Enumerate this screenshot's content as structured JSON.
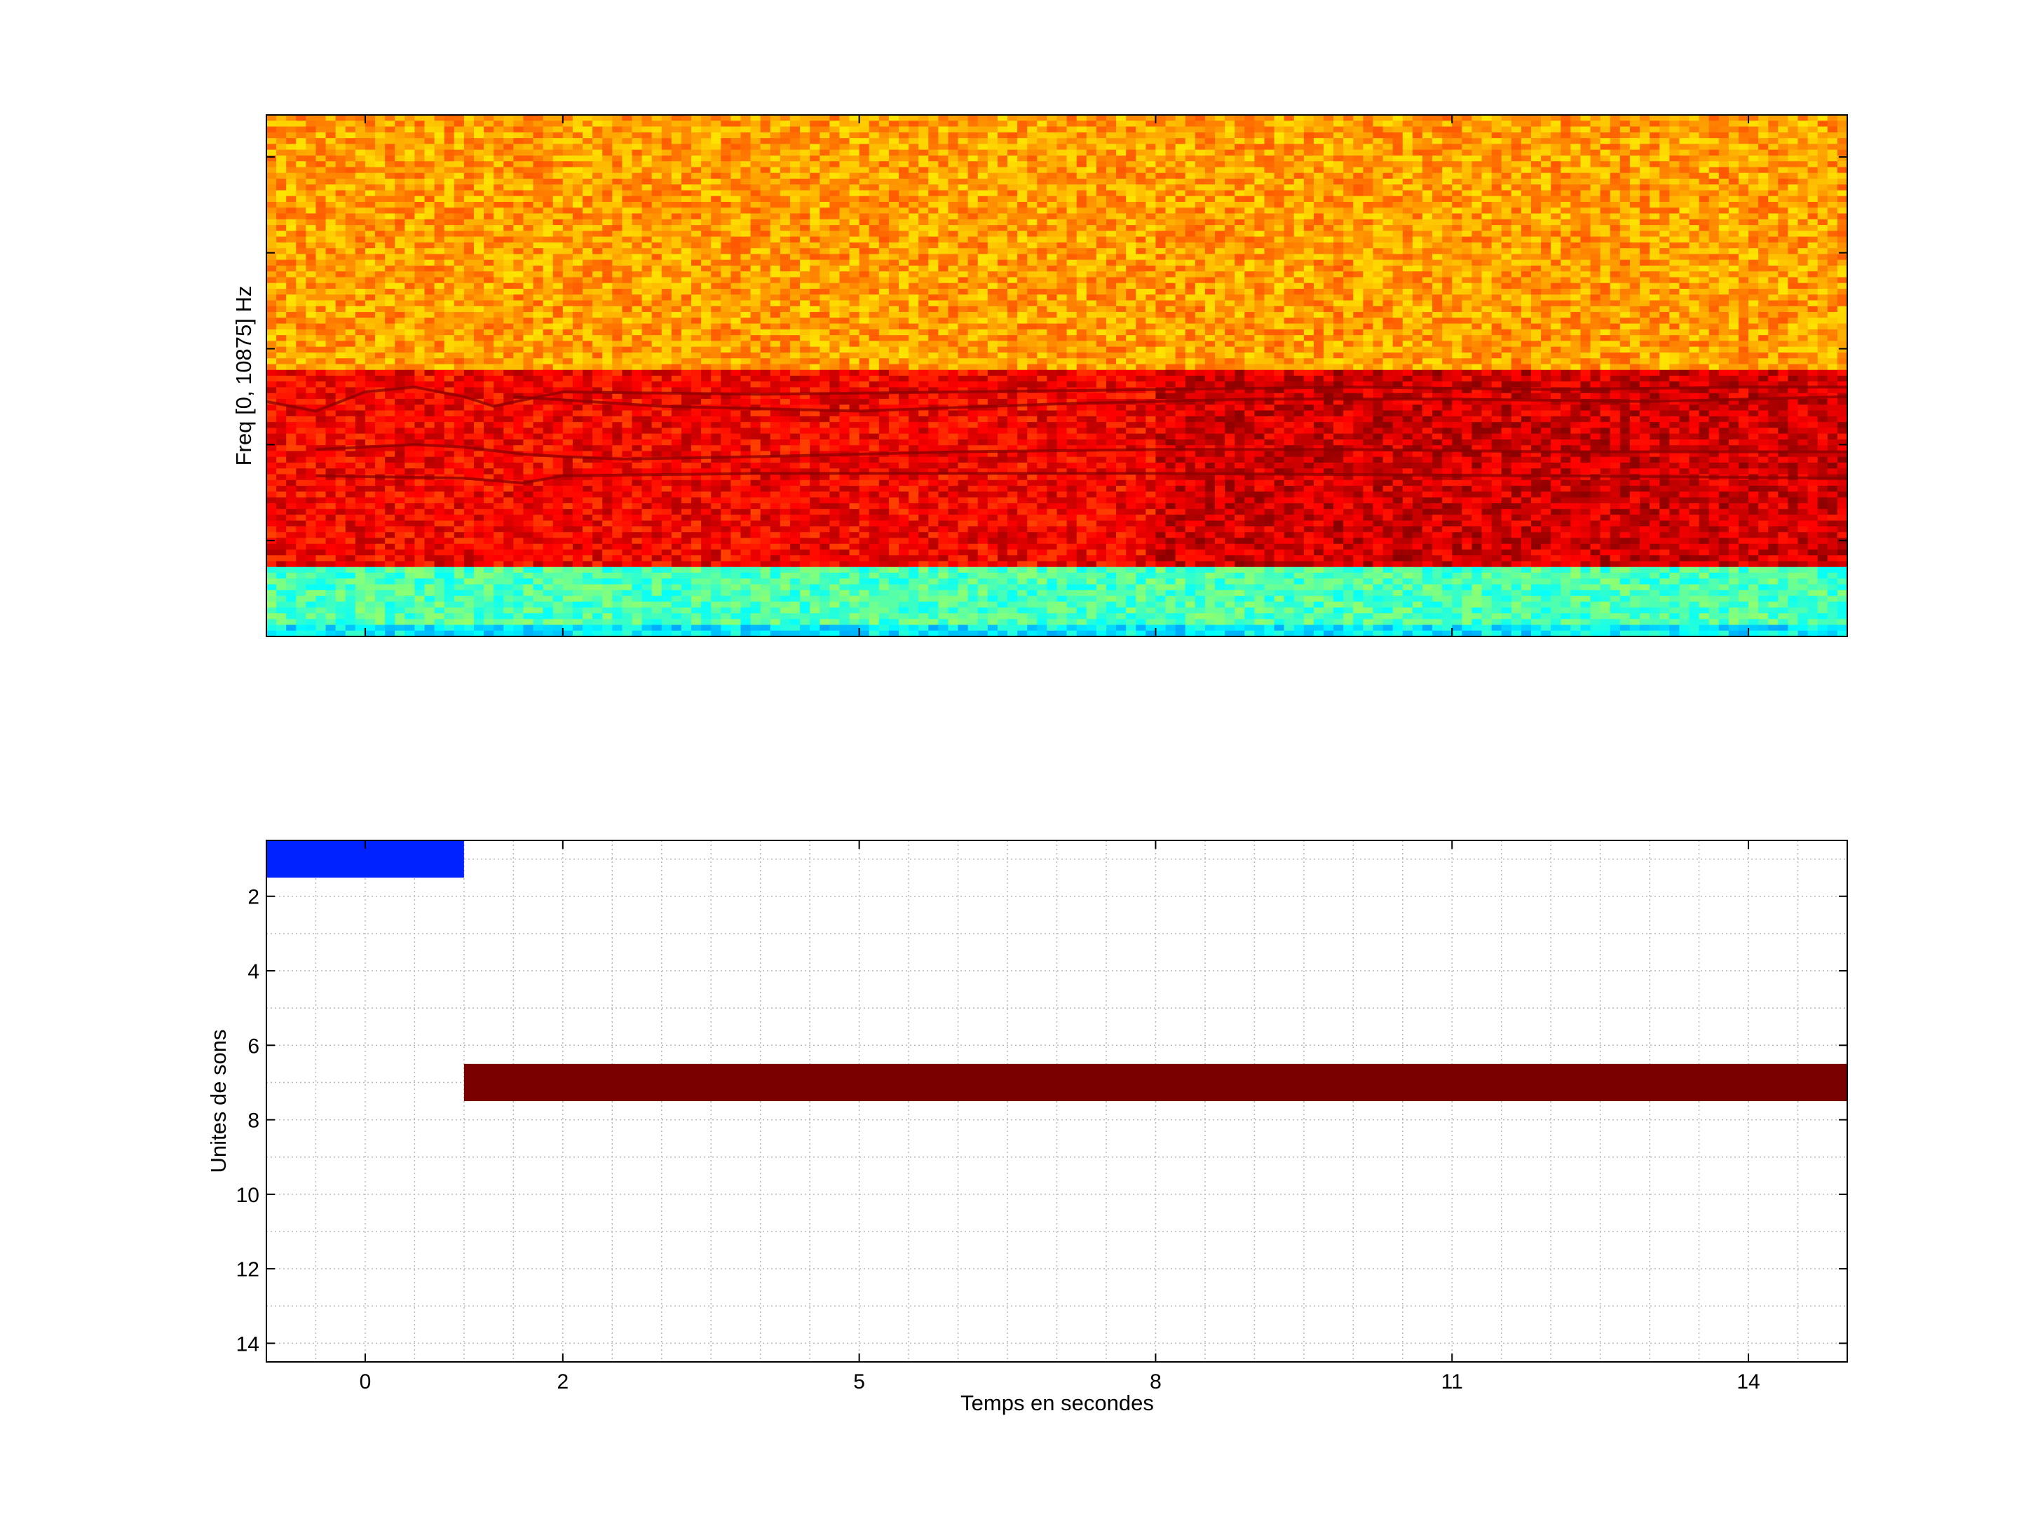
{
  "colors": {
    "background": "#ffffff",
    "axis": "#000000",
    "grid": "#b8b8b8",
    "colormap": "jet"
  },
  "chart_data": [
    {
      "type": "heatmap",
      "title": "",
      "xlabel": "",
      "ylabel": "Freq [0, 10875] Hz",
      "xlim": [
        -1,
        15
      ],
      "ylim": [
        0,
        10875
      ],
      "grid": false,
      "colormap": "jet",
      "x_tick_labels": [],
      "y_tick_labels": [],
      "description_bands": {
        "low_freq_band_hz": [
          0,
          1500
        ],
        "low_freq_color": "cyan-green",
        "mid_freq_band_hz": [
          1500,
          5500
        ],
        "mid_freq_color": "red",
        "high_freq_band_hz": [
          5500,
          10875
        ],
        "high_freq_color": "yellow-orange"
      },
      "harmonic_tracks_hz": [
        {
          "name": "track-1",
          "points": [
            [
              -1,
              4900
            ],
            [
              -0.5,
              4700
            ],
            [
              0,
              5100
            ],
            [
              0.5,
              5200
            ],
            [
              1,
              5000
            ],
            [
              1.3,
              4800
            ],
            [
              2,
              5100
            ],
            [
              4,
              5050
            ],
            [
              6,
              5100
            ],
            [
              8,
              5150
            ],
            [
              10,
              5200
            ],
            [
              12,
              5150
            ],
            [
              14,
              5200
            ],
            [
              15,
              5200
            ]
          ]
        },
        {
          "name": "track-2",
          "points": [
            [
              1.5,
              5000
            ],
            [
              3,
              4800
            ],
            [
              5,
              4700
            ],
            [
              7,
              4850
            ],
            [
              9,
              4950
            ],
            [
              11,
              4950
            ],
            [
              13,
              4900
            ],
            [
              15,
              5000
            ]
          ]
        },
        {
          "name": "track-3",
          "points": [
            [
              -0.5,
              3900
            ],
            [
              0.5,
              4000
            ],
            [
              1,
              3950
            ],
            [
              1.6,
              3800
            ],
            [
              2,
              3750
            ],
            [
              2.6,
              3700
            ],
            [
              4,
              3750
            ],
            [
              6,
              3850
            ],
            [
              8,
              3900
            ],
            [
              10,
              3900
            ],
            [
              12,
              3850
            ],
            [
              14,
              3850
            ],
            [
              15,
              3850
            ]
          ]
        },
        {
          "name": "track-4",
          "points": [
            [
              -0.5,
              3350
            ],
            [
              1,
              3300
            ],
            [
              1.6,
              3200
            ],
            [
              2,
              3350
            ],
            [
              4,
              3400
            ],
            [
              8,
              3400
            ],
            [
              12,
              3350
            ],
            [
              15,
              3300
            ]
          ]
        }
      ]
    },
    {
      "type": "bar",
      "orientation": "horizontal-segments",
      "title": "",
      "xlabel": "Temps en secondes",
      "ylabel": "Unites de sons",
      "xlim": [
        -1,
        15
      ],
      "ylim": [
        14.5,
        0.5
      ],
      "y_reversed": true,
      "grid": true,
      "x_ticks": [
        0,
        2,
        5,
        8,
        11,
        14
      ],
      "x_tick_labels": [
        "0",
        "2",
        "5",
        "8",
        "11",
        "14"
      ],
      "y_ticks": [
        2,
        4,
        6,
        8,
        10,
        12,
        14
      ],
      "y_tick_labels": [
        "2",
        "4",
        "6",
        "8",
        "10",
        "12",
        "14"
      ],
      "segments": [
        {
          "unit": 1,
          "start": -1,
          "end": 1,
          "color": "#0022ff"
        },
        {
          "unit": 7,
          "start": 1,
          "end": 15,
          "color": "#7a0000"
        }
      ]
    }
  ]
}
